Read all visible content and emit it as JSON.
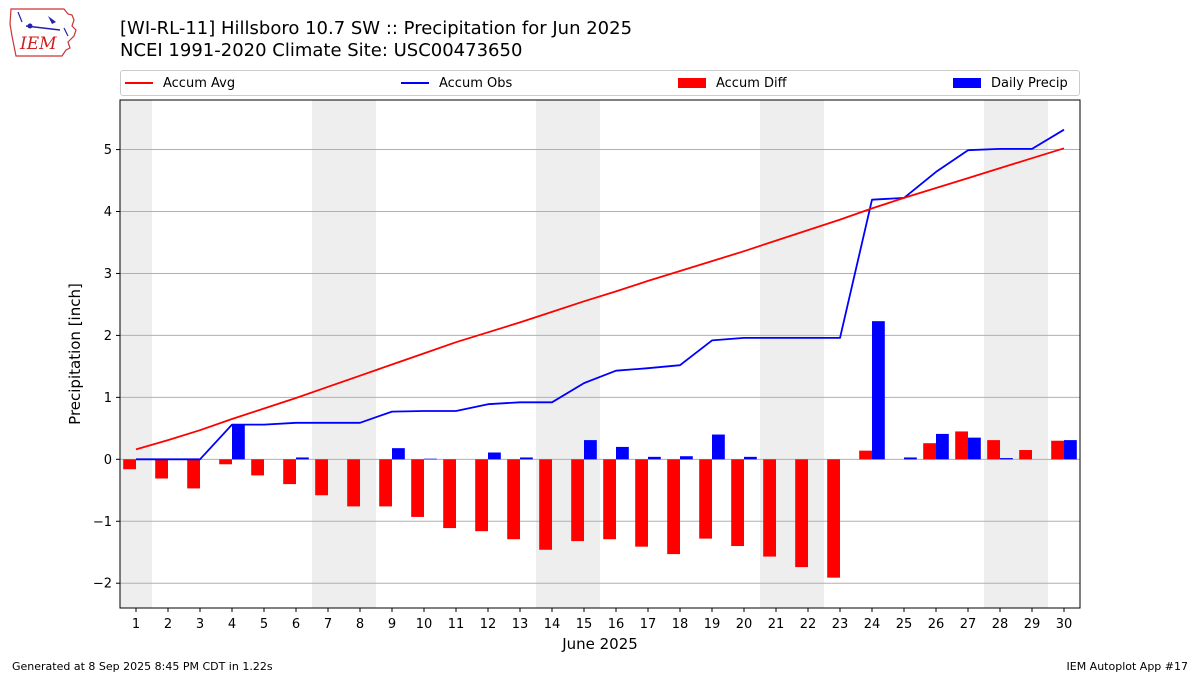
{
  "header": {
    "title_line1": "[WI-RL-11] Hillsboro 10.7 SW :: Precipitation for Jun 2025",
    "title_line2": "NCEI 1991-2020 Climate Site: USC00473650"
  },
  "logo": {
    "text": "IEM",
    "icon": "iem-iowa-map-logo"
  },
  "legend": {
    "accum_avg": "Accum Avg",
    "accum_obs": "Accum Obs",
    "accum_diff": "Accum Diff",
    "daily_precip": "Daily Precip"
  },
  "footer": {
    "left": "Generated at 8 Sep 2025 8:45 PM CDT in 1.22s",
    "right": "IEM Autoplot App #17"
  },
  "colors": {
    "avg_line": "#ff0000",
    "obs_line": "#0000ff",
    "diff_bar": "#ff0000",
    "daily_bar": "#0000ff",
    "weekend_shade": "#eeeeee",
    "grid": "#b0b0b0"
  },
  "chart_data": {
    "type": "bar",
    "xlabel": "June 2025",
    "ylabel": "Precipitation [inch]",
    "ylim": [
      -2.4,
      5.8
    ],
    "yticks": [
      -2,
      -1,
      0,
      1,
      2,
      3,
      4,
      5
    ],
    "ytick_labels": [
      "−2",
      "−1",
      "0",
      "1",
      "2",
      "3",
      "4",
      "5"
    ],
    "x": [
      1,
      2,
      3,
      4,
      5,
      6,
      7,
      8,
      9,
      10,
      11,
      12,
      13,
      14,
      15,
      16,
      17,
      18,
      19,
      20,
      21,
      22,
      23,
      24,
      25,
      26,
      27,
      28,
      29,
      30
    ],
    "xtick_labels": [
      "1",
      "2",
      "3",
      "4",
      "5",
      "6",
      "7",
      "8",
      "9",
      "10",
      "11",
      "12",
      "13",
      "14",
      "15",
      "16",
      "17",
      "18",
      "19",
      "20",
      "21",
      "22",
      "23",
      "24",
      "25",
      "26",
      "27",
      "28",
      "29",
      "30"
    ],
    "grid": "horizontal",
    "shaded_weekend_ranges": [
      [
        0.5,
        1.5
      ],
      [
        6.5,
        8.5
      ],
      [
        13.5,
        15.5
      ],
      [
        20.5,
        22.5
      ],
      [
        27.5,
        29.5
      ]
    ],
    "series": [
      {
        "name": "Accum Avg",
        "type": "line",
        "values": [
          0.16,
          0.31,
          0.47,
          0.65,
          0.82,
          0.99,
          1.17,
          1.35,
          1.53,
          1.71,
          1.89,
          2.05,
          2.21,
          2.38,
          2.55,
          2.71,
          2.88,
          3.04,
          3.2,
          3.36,
          3.53,
          3.7,
          3.87,
          4.05,
          4.22,
          4.38,
          4.54,
          4.7,
          4.86,
          5.02
        ]
      },
      {
        "name": "Accum Obs",
        "type": "line",
        "values": [
          0.0,
          0.0,
          0.0,
          0.56,
          0.56,
          0.59,
          0.59,
          0.59,
          0.77,
          0.78,
          0.78,
          0.89,
          0.92,
          0.92,
          1.23,
          1.43,
          1.47,
          1.52,
          1.92,
          1.96,
          1.96,
          1.96,
          1.96,
          4.19,
          4.22,
          4.64,
          4.99,
          5.01,
          5.01,
          5.32
        ]
      },
      {
        "name": "Accum Diff",
        "type": "bar",
        "values": [
          -0.16,
          -0.31,
          -0.47,
          -0.08,
          -0.26,
          -0.4,
          -0.58,
          -0.76,
          -0.76,
          -0.93,
          -1.11,
          -1.16,
          -1.29,
          -1.46,
          -1.32,
          -1.29,
          -1.41,
          -1.53,
          -1.28,
          -1.4,
          -1.57,
          -1.74,
          -1.91,
          0.14,
          0.0,
          0.26,
          0.45,
          0.31,
          0.15,
          0.3
        ]
      },
      {
        "name": "Daily Precip",
        "type": "bar",
        "values": [
          0.0,
          0.0,
          0.0,
          0.56,
          0.0,
          0.03,
          0.0,
          0.0,
          0.18,
          0.01,
          0.0,
          0.11,
          0.03,
          0.0,
          0.31,
          0.2,
          0.04,
          0.05,
          0.4,
          0.04,
          0.0,
          0.0,
          0.0,
          2.23,
          0.03,
          0.41,
          0.35,
          0.02,
          0.0,
          0.31
        ]
      }
    ]
  }
}
